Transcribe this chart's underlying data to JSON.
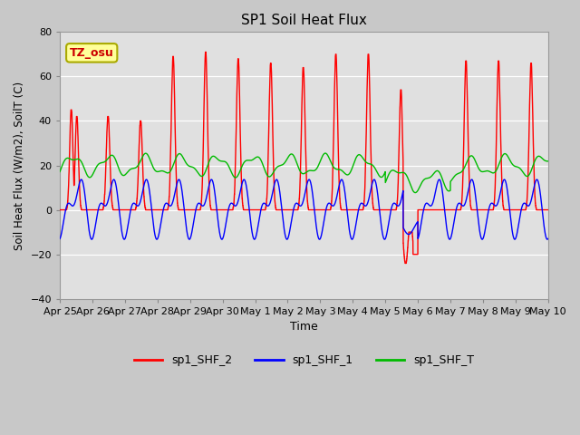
{
  "title": "SP1 Soil Heat Flux",
  "xlabel": "Time",
  "ylabel": "Soil Heat Flux (W/m2), SoilT (C)",
  "ylim": [
    -40,
    80
  ],
  "yticks": [
    -40,
    -20,
    0,
    20,
    40,
    60,
    80
  ],
  "color_shf2": "#ff0000",
  "color_shf1": "#0000ff",
  "color_shft": "#00bb00",
  "legend_labels": [
    "sp1_SHF_2",
    "sp1_SHF_1",
    "sp1_SHF_T"
  ],
  "annotation_text": "TZ_osu",
  "annotation_color": "#cc0000",
  "annotation_bg": "#ffff99",
  "annotation_border": "#aaaa00",
  "plot_bg_color": "#e8e8e8",
  "grid_color": "#ffffff",
  "tick_labels": [
    "Apr 25",
    "Apr 26",
    "Apr 27",
    "Apr 28",
    "Apr 29",
    "Apr 30",
    "May 1",
    "May 2",
    "May 3",
    "May 4",
    "May 5",
    "May 6",
    "May 7",
    "May 8",
    "May 9",
    "May 10"
  ],
  "line_width": 1.0
}
